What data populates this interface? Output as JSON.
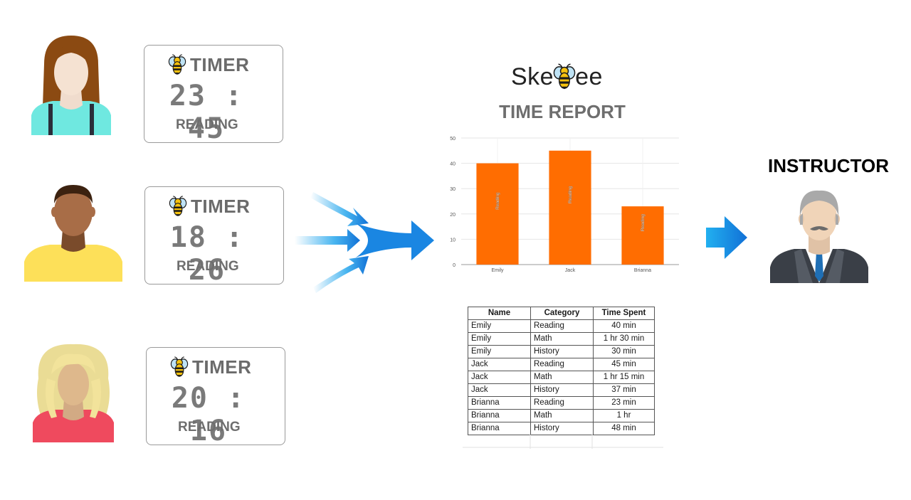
{
  "students": [
    {
      "timer_title": "TIMER",
      "time": "23 : 45",
      "activity": "READING"
    },
    {
      "timer_title": "TIMER",
      "time": "18 : 26",
      "activity": "READING"
    },
    {
      "timer_title": "TIMER",
      "time": "20 : 16",
      "activity": "READING"
    }
  ],
  "logo": {
    "text_start": "Ske",
    "text_end": "ee"
  },
  "report_title": "TIME REPORT",
  "instructor_label": "INSTRUCTOR",
  "colors": {
    "bar": "#ff6d01",
    "arrow": "#1ca3ec",
    "arrow_dark": "#1170d6"
  },
  "chart_data": {
    "type": "bar",
    "categories": [
      "Emily",
      "Jack",
      "Brianna"
    ],
    "values": [
      40,
      45,
      23
    ],
    "bar_labels": [
      "Reading",
      "Reading",
      "Reading"
    ],
    "ylim": [
      0,
      50
    ],
    "yticks": [
      0,
      10,
      20,
      30,
      40,
      50
    ],
    "grid": true,
    "xlabel": "",
    "ylabel": ""
  },
  "table": {
    "headers": [
      "Name",
      "Category",
      "Time Spent"
    ],
    "rows": [
      [
        "Emily",
        "Reading",
        "40 min"
      ],
      [
        "Emily",
        "Math",
        "1 hr 30 min"
      ],
      [
        "Emily",
        "History",
        "30 min"
      ],
      [
        "Jack",
        "Reading",
        "45 min"
      ],
      [
        "Jack",
        "Math",
        "1 hr 15 min"
      ],
      [
        "Jack",
        "History",
        "37 min"
      ],
      [
        "Brianna",
        "Reading",
        "23 min"
      ],
      [
        "Brianna",
        "Math",
        "1 hr"
      ],
      [
        "Brianna",
        "History",
        "48 min"
      ]
    ]
  }
}
